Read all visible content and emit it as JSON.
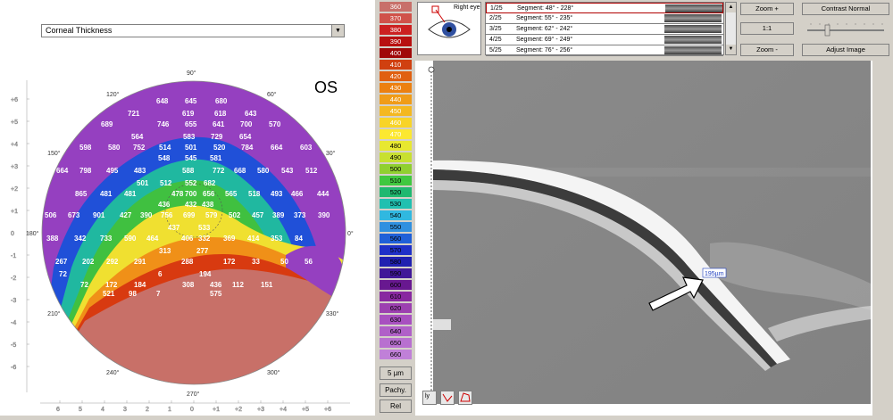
{
  "map": {
    "dropdown_value": "Corneal Thickness",
    "eye_label": "OS",
    "x_ticks": [
      "6",
      "5",
      "4",
      "3",
      "2",
      "1",
      "0",
      "+1",
      "+2",
      "+3",
      "+4",
      "+5",
      "+6"
    ],
    "y_ticks": [
      "+6",
      "+5",
      "+4",
      "+3",
      "+2",
      "+1",
      "0",
      "-1",
      "-2",
      "-3",
      "-4",
      "-5",
      "-6"
    ],
    "angles": [
      "90°",
      "60°",
      "30°",
      "0°",
      "330°",
      "300°",
      "270°",
      "240°",
      "210°",
      "180°",
      "150°",
      "120°"
    ],
    "values": [
      "648",
      "645",
      "680",
      "721",
      "619",
      "618",
      "643",
      "689",
      "746",
      "655",
      "641",
      "700",
      "570",
      "564",
      "583",
      "729",
      "654",
      "598",
      "580",
      "752",
      "514",
      "501",
      "520",
      "784",
      "664",
      "603",
      "548",
      "545",
      "581",
      "664",
      "798",
      "495",
      "483",
      "588",
      "772",
      "668",
      "580",
      "543",
      "512",
      "501",
      "512",
      "552",
      "682",
      "865",
      "481",
      "481",
      "478",
      "700",
      "656",
      "565",
      "518",
      "493",
      "466",
      "444",
      "436",
      "432",
      "438",
      "506",
      "673",
      "901",
      "427",
      "390",
      "756",
      "699",
      "579",
      "502",
      "457",
      "389",
      "373",
      "390",
      "437",
      "533",
      "388",
      "342",
      "733",
      "590",
      "464",
      "406",
      "332",
      "369",
      "414",
      "353",
      "84",
      "313",
      "277",
      "267",
      "202",
      "292",
      "291",
      "288",
      "172",
      "33",
      "50",
      "56",
      "72",
      "6",
      "194",
      "72",
      "172",
      "184",
      "308",
      "436",
      "112",
      "151",
      "521",
      "98",
      "7",
      "575"
    ]
  },
  "scale": {
    "values": [
      "360",
      "370",
      "380",
      "390",
      "400",
      "410",
      "420",
      "430",
      "440",
      "450",
      "460",
      "470",
      "480",
      "490",
      "500",
      "510",
      "520",
      "530",
      "540",
      "550",
      "560",
      "570",
      "580",
      "590",
      "600",
      "610",
      "620",
      "630",
      "640",
      "650",
      "660"
    ],
    "colors": [
      "#c8706a",
      "#d0524a",
      "#cc2020",
      "#b81010",
      "#a00808",
      "#d04010",
      "#e06010",
      "#ec8010",
      "#f09c18",
      "#f4b820",
      "#f8d428",
      "#fce830",
      "#e8e830",
      "#c8e030",
      "#90d030",
      "#40c840",
      "#20b870",
      "#20c0b0",
      "#30b8e0",
      "#3090e0",
      "#2060d8",
      "#2030c8",
      "#2020b0",
      "#401898",
      "#681890",
      "#8828a0",
      "#9c40b0",
      "#a850c0",
      "#b060c8",
      "#b870d0",
      "#c080d8"
    ],
    "btn_step": "5 µm",
    "btn_pachy": "Pachy.",
    "btn_rel": "Rel"
  },
  "oct": {
    "eye_label": "Right eye",
    "segments": [
      {
        "idx": "1/25",
        "text": "Segment: 48° - 228°"
      },
      {
        "idx": "2/25",
        "text": "Segment: 55° - 235°"
      },
      {
        "idx": "3/25",
        "text": "Segment: 62° - 242°"
      },
      {
        "idx": "4/25",
        "text": "Segment: 69° - 249°"
      },
      {
        "idx": "5/25",
        "text": "Segment: 76° - 256°"
      }
    ],
    "zoom_in": "Zoom +",
    "one_to_one": "1:1",
    "zoom_out": "Zoom -",
    "contrast": "Contrast Normal",
    "adjust": "Adjust Image",
    "measurement": "195µm",
    "tool_label": "ly"
  }
}
